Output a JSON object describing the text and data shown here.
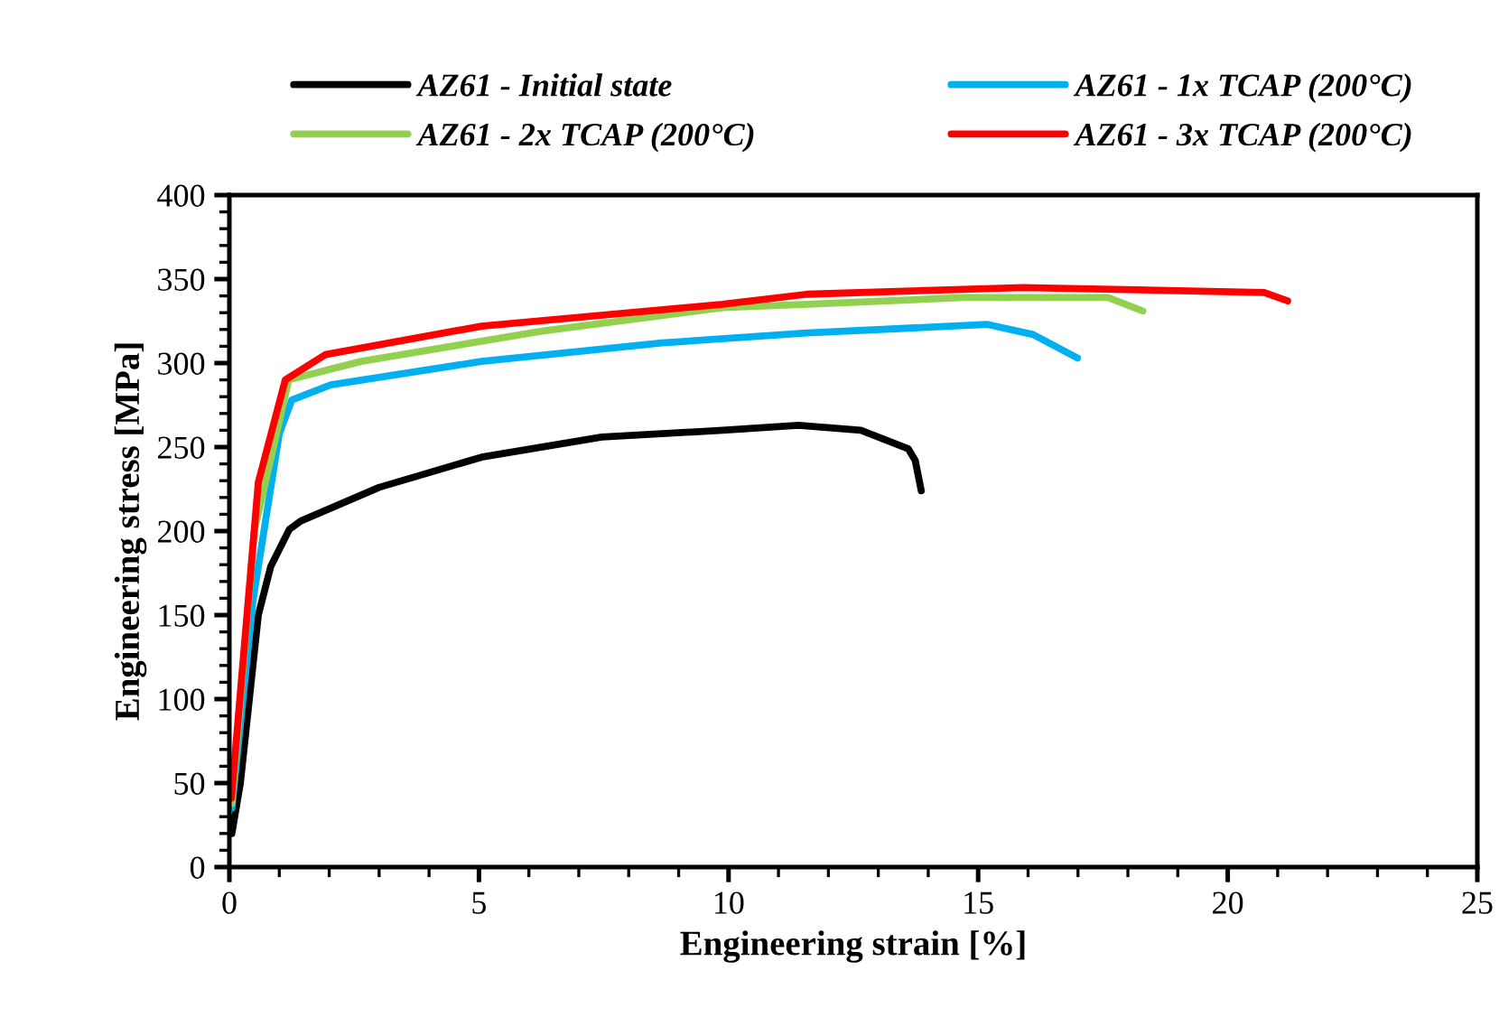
{
  "chart_data": {
    "type": "line",
    "xlabel": "Engineering strain [%]",
    "ylabel": "Engineering stress [MPa]",
    "xlim": [
      0,
      25
    ],
    "xticks": [
      0,
      5,
      10,
      15,
      20,
      25
    ],
    "ylim": [
      0,
      400
    ],
    "yticks": [
      0,
      50,
      100,
      150,
      200,
      250,
      300,
      350,
      400
    ],
    "grid": false,
    "legend": "top",
    "marker": "none",
    "line_style": "solid",
    "series": [
      {
        "name": "AZ61 - Initial state",
        "color": "#000000",
        "x": [
          0.05,
          0.22,
          0.58,
          0.83,
          1.2,
          1.43,
          3.0,
          5.05,
          7.46,
          9.88,
          11.4,
          12.65,
          13.6,
          13.74,
          13.86
        ],
        "values": [
          20,
          50,
          150,
          179,
          201,
          206,
          226,
          244,
          256,
          260,
          263,
          260,
          249,
          242,
          224
        ]
      },
      {
        "name": "AZ61 - 1x TCAP (200°C)",
        "color": "#00b0f0",
        "x": [
          0.05,
          0.47,
          1.0,
          1.25,
          2.03,
          5.05,
          8.67,
          11.57,
          15.19,
          16.1,
          16.99
        ],
        "values": [
          35,
          158,
          258,
          278,
          287,
          301,
          312,
          318,
          323,
          317,
          303
        ]
      },
      {
        "name": "AZ61 - 2x TCAP (200°C)",
        "color": "#92d050",
        "x": [
          0.05,
          0.5,
          1.19,
          2.64,
          6.26,
          9.88,
          11.57,
          14.7,
          17.6,
          18.3
        ],
        "values": [
          38,
          200,
          290,
          301,
          319,
          333,
          335,
          339,
          339,
          331
        ]
      },
      {
        "name": "AZ61 - 3x TCAP (200°C)",
        "color": "#ff0000",
        "x": [
          0.04,
          0.58,
          1.12,
          1.92,
          5.05,
          9.88,
          11.57,
          15.9,
          20.73,
          21.2
        ],
        "values": [
          41,
          229,
          290,
          305,
          322,
          335,
          341,
          345,
          342,
          337
        ]
      }
    ]
  }
}
